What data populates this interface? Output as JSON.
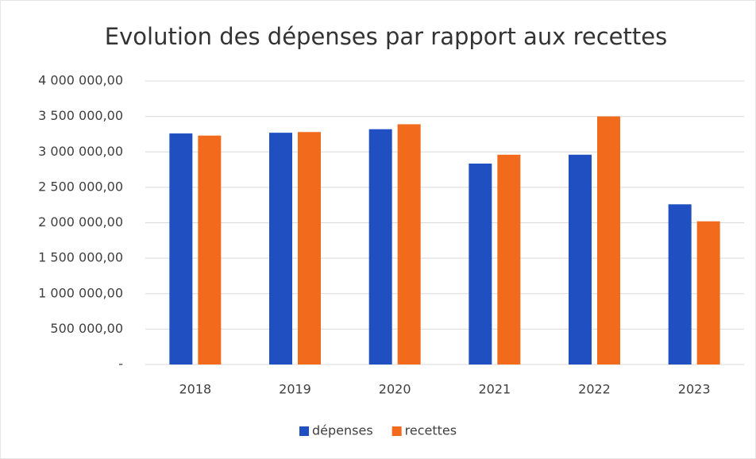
{
  "chart_data": {
    "type": "bar",
    "title": "Evolution des dépenses par rapport aux recettes",
    "categories": [
      "2018",
      "2019",
      "2020",
      "2021",
      "2022",
      "2023"
    ],
    "series": [
      {
        "name": "dépenses",
        "color": "#1f4fc0",
        "values": [
          3260000,
          3270000,
          3320000,
          2835000,
          2960000,
          2260000
        ]
      },
      {
        "name": "recettes",
        "color": "#f26b1d",
        "values": [
          3230000,
          3280000,
          3390000,
          2960000,
          3500000,
          2020000
        ]
      }
    ],
    "ylim": [
      0,
      4000000
    ],
    "yticks": [
      {
        "value": 0,
        "label": "-"
      },
      {
        "value": 500000,
        "label": "500 000,00"
      },
      {
        "value": 1000000,
        "label": "1 000 000,00"
      },
      {
        "value": 1500000,
        "label": "1 500 000,00"
      },
      {
        "value": 2000000,
        "label": "2 000 000,00"
      },
      {
        "value": 2500000,
        "label": "2 500 000,00"
      },
      {
        "value": 3000000,
        "label": "3 000 000,00"
      },
      {
        "value": 3500000,
        "label": "3 500 000,00"
      },
      {
        "value": 4000000,
        "label": "4 000 000,00"
      }
    ],
    "grid": true,
    "legend": "bottom"
  }
}
